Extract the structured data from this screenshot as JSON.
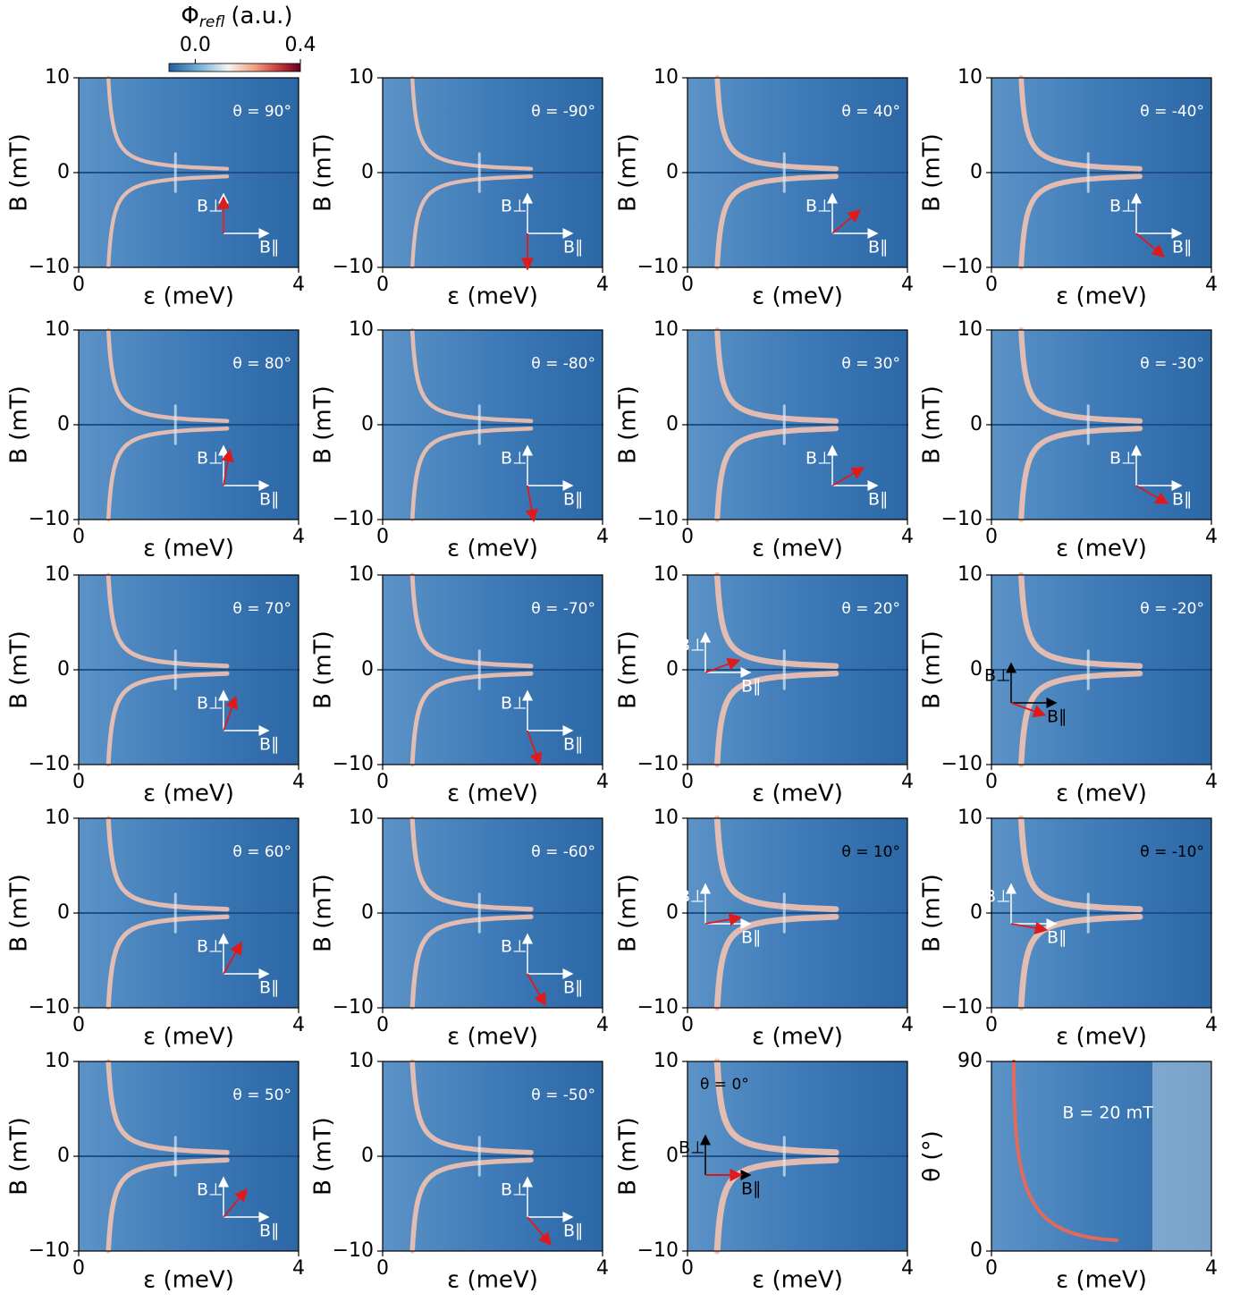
{
  "chart_data": [
    {
      "type": "heatmap",
      "xlabel": "ε (meV)",
      "ylabel": "B (mT)",
      "xlim": [
        0,
        4
      ],
      "ylim": [
        -10,
        10
      ],
      "xticks": [
        0,
        4
      ],
      "yticks": [
        {
          "value": -10,
          "label": "−10"
        },
        0,
        10
      ],
      "annotation": "θ = 90°",
      "theta": 90,
      "perp_label": "B⊥",
      "par_label": "B∥",
      "colorbar": {
        "symbol": "Φ",
        "subscript": "refl",
        "unit": "(a.u.)",
        "range": [
          -0.1,
          0.4
        ],
        "ticks": [
          {
            "value": 0,
            "label": "0.0"
          },
          0.4
        ]
      }
    },
    {
      "type": "heatmap",
      "xlabel": "ε (meV)",
      "ylabel": "B (mT)",
      "xlim": [
        0,
        4
      ],
      "ylim": [
        -10,
        10
      ],
      "xticks": [
        0,
        4
      ],
      "yticks": [
        {
          "value": -10,
          "label": "−10"
        },
        0,
        10
      ],
      "annotation": "θ = -90°",
      "theta": -90,
      "perp_label": "B⊥",
      "par_label": "B∥"
    },
    {
      "type": "heatmap",
      "xlabel": "ε (meV)",
      "ylabel": "B (mT)",
      "xlim": [
        0,
        4
      ],
      "ylim": [
        -10,
        10
      ],
      "xticks": [
        0,
        4
      ],
      "yticks": [
        {
          "value": -10,
          "label": "−10"
        },
        0,
        10
      ],
      "annotation": "θ = 40°",
      "theta": 40,
      "perp_label": "B⊥",
      "par_label": "B∥"
    },
    {
      "type": "heatmap",
      "xlabel": "ε (meV)",
      "ylabel": "B (mT)",
      "xlim": [
        0,
        4
      ],
      "ylim": [
        -10,
        10
      ],
      "xticks": [
        0,
        4
      ],
      "yticks": [
        {
          "value": -10,
          "label": "−10"
        },
        0,
        10
      ],
      "annotation": "θ = -40°",
      "theta": -40,
      "perp_label": "B⊥",
      "par_label": "B∥"
    },
    {
      "type": "heatmap",
      "xlabel": "ε (meV)",
      "ylabel": "B (mT)",
      "xlim": [
        0,
        4
      ],
      "ylim": [
        -10,
        10
      ],
      "xticks": [
        0,
        4
      ],
      "yticks": [
        {
          "value": -10,
          "label": "−10"
        },
        0,
        10
      ],
      "annotation": "θ = 80°",
      "theta": 80,
      "perp_label": "B⊥",
      "par_label": "B∥"
    },
    {
      "type": "heatmap",
      "xlabel": "ε (meV)",
      "ylabel": "B (mT)",
      "xlim": [
        0,
        4
      ],
      "ylim": [
        -10,
        10
      ],
      "xticks": [
        0,
        4
      ],
      "yticks": [
        {
          "value": -10,
          "label": "−10"
        },
        0,
        10
      ],
      "annotation": "θ = -80°",
      "theta": -80,
      "perp_label": "B⊥",
      "par_label": "B∥"
    },
    {
      "type": "heatmap",
      "xlabel": "ε (meV)",
      "ylabel": "B (mT)",
      "xlim": [
        0,
        4
      ],
      "ylim": [
        -10,
        10
      ],
      "xticks": [
        0,
        4
      ],
      "yticks": [
        {
          "value": -10,
          "label": "−10"
        },
        0,
        10
      ],
      "annotation": "θ = 30°",
      "theta": 30,
      "perp_label": "B⊥",
      "par_label": "B∥"
    },
    {
      "type": "heatmap",
      "xlabel": "ε (meV)",
      "ylabel": "B (mT)",
      "xlim": [
        0,
        4
      ],
      "ylim": [
        -10,
        10
      ],
      "xticks": [
        0,
        4
      ],
      "yticks": [
        {
          "value": -10,
          "label": "−10"
        },
        0,
        10
      ],
      "annotation": "θ = -30°",
      "theta": -30,
      "perp_label": "B⊥",
      "par_label": "B∥"
    },
    {
      "type": "heatmap",
      "xlabel": "ε (meV)",
      "ylabel": "B (mT)",
      "xlim": [
        0,
        4
      ],
      "ylim": [
        -10,
        10
      ],
      "xticks": [
        0,
        4
      ],
      "yticks": [
        {
          "value": -10,
          "label": "−10"
        },
        0,
        10
      ],
      "annotation": "θ = 70°",
      "theta": 70,
      "perp_label": "B⊥",
      "par_label": "B∥"
    },
    {
      "type": "heatmap",
      "xlabel": "ε (meV)",
      "ylabel": "B (mT)",
      "xlim": [
        0,
        4
      ],
      "ylim": [
        -10,
        10
      ],
      "xticks": [
        0,
        4
      ],
      "yticks": [
        {
          "value": -10,
          "label": "−10"
        },
        0,
        10
      ],
      "annotation": "θ = -70°",
      "theta": -70,
      "perp_label": "B⊥",
      "par_label": "B∥"
    },
    {
      "type": "heatmap",
      "xlabel": "ε (meV)",
      "ylabel": "B (mT)",
      "xlim": [
        0,
        4
      ],
      "ylim": [
        -10,
        10
      ],
      "xticks": [
        0,
        4
      ],
      "yticks": [
        {
          "value": -10,
          "label": "−10"
        },
        0,
        10
      ],
      "annotation": "θ = 20°",
      "theta": 20,
      "perp_label": "B⊥",
      "par_label": "B∥"
    },
    {
      "type": "heatmap",
      "xlabel": "ε (meV)",
      "ylabel": "B (mT)",
      "xlim": [
        0,
        4
      ],
      "ylim": [
        -10,
        10
      ],
      "xticks": [
        0,
        4
      ],
      "yticks": [
        {
          "value": -10,
          "label": "−10"
        },
        0,
        10
      ],
      "annotation": "θ = -20°",
      "theta": -20,
      "perp_label": "B⊥",
      "par_label": "B∥"
    },
    {
      "type": "heatmap",
      "xlabel": "ε (meV)",
      "ylabel": "B (mT)",
      "xlim": [
        0,
        4
      ],
      "ylim": [
        -10,
        10
      ],
      "xticks": [
        0,
        4
      ],
      "yticks": [
        {
          "value": -10,
          "label": "−10"
        },
        0,
        10
      ],
      "annotation": "θ = 60°",
      "theta": 60,
      "perp_label": "B⊥",
      "par_label": "B∥"
    },
    {
      "type": "heatmap",
      "xlabel": "ε (meV)",
      "ylabel": "B (mT)",
      "xlim": [
        0,
        4
      ],
      "ylim": [
        -10,
        10
      ],
      "xticks": [
        0,
        4
      ],
      "yticks": [
        {
          "value": -10,
          "label": "−10"
        },
        0,
        10
      ],
      "annotation": "θ = -60°",
      "theta": -60,
      "perp_label": "B⊥",
      "par_label": "B∥"
    },
    {
      "type": "heatmap",
      "xlabel": "ε (meV)",
      "ylabel": "B (mT)",
      "xlim": [
        0,
        4
      ],
      "ylim": [
        -10,
        10
      ],
      "xticks": [
        0,
        4
      ],
      "yticks": [
        {
          "value": -10,
          "label": "−10"
        },
        0,
        10
      ],
      "annotation": "θ = 10°",
      "theta": 10,
      "perp_label": "B⊥",
      "par_label": "B∥"
    },
    {
      "type": "heatmap",
      "xlabel": "ε (meV)",
      "ylabel": "B (mT)",
      "xlim": [
        0,
        4
      ],
      "ylim": [
        -10,
        10
      ],
      "xticks": [
        0,
        4
      ],
      "yticks": [
        {
          "value": -10,
          "label": "−10"
        },
        0,
        10
      ],
      "annotation": "θ = -10°",
      "theta": -10,
      "perp_label": "B⊥",
      "par_label": "B∥"
    },
    {
      "type": "heatmap",
      "xlabel": "ε (meV)",
      "ylabel": "B (mT)",
      "xlim": [
        0,
        4
      ],
      "ylim": [
        -10,
        10
      ],
      "xticks": [
        0,
        4
      ],
      "yticks": [
        {
          "value": -10,
          "label": "−10"
        },
        0,
        10
      ],
      "annotation": "θ = 50°",
      "theta": 50,
      "perp_label": "B⊥",
      "par_label": "B∥"
    },
    {
      "type": "heatmap",
      "xlabel": "ε (meV)",
      "ylabel": "B (mT)",
      "xlim": [
        0,
        4
      ],
      "ylim": [
        -10,
        10
      ],
      "xticks": [
        0,
        4
      ],
      "yticks": [
        {
          "value": -10,
          "label": "−10"
        },
        0,
        10
      ],
      "annotation": "θ = -50°",
      "theta": -50,
      "perp_label": "B⊥",
      "par_label": "B∥"
    },
    {
      "type": "heatmap",
      "xlabel": "ε (meV)",
      "ylabel": "B (mT)",
      "xlim": [
        0,
        4
      ],
      "ylim": [
        -10,
        10
      ],
      "xticks": [
        0,
        4
      ],
      "yticks": [
        {
          "value": -10,
          "label": "−10"
        },
        0,
        10
      ],
      "annotation": "θ = 0°",
      "theta": 0,
      "perp_label": "B⊥",
      "par_label": "B∥"
    },
    {
      "type": "heatmap",
      "xlabel": "ε (meV)",
      "ylabel": "θ (°)",
      "xlim": [
        0,
        4
      ],
      "ylim": [
        0,
        90
      ],
      "xticks": [
        0,
        4
      ],
      "yticks": [
        0,
        90
      ],
      "annotation": "B = 20 mT"
    }
  ]
}
